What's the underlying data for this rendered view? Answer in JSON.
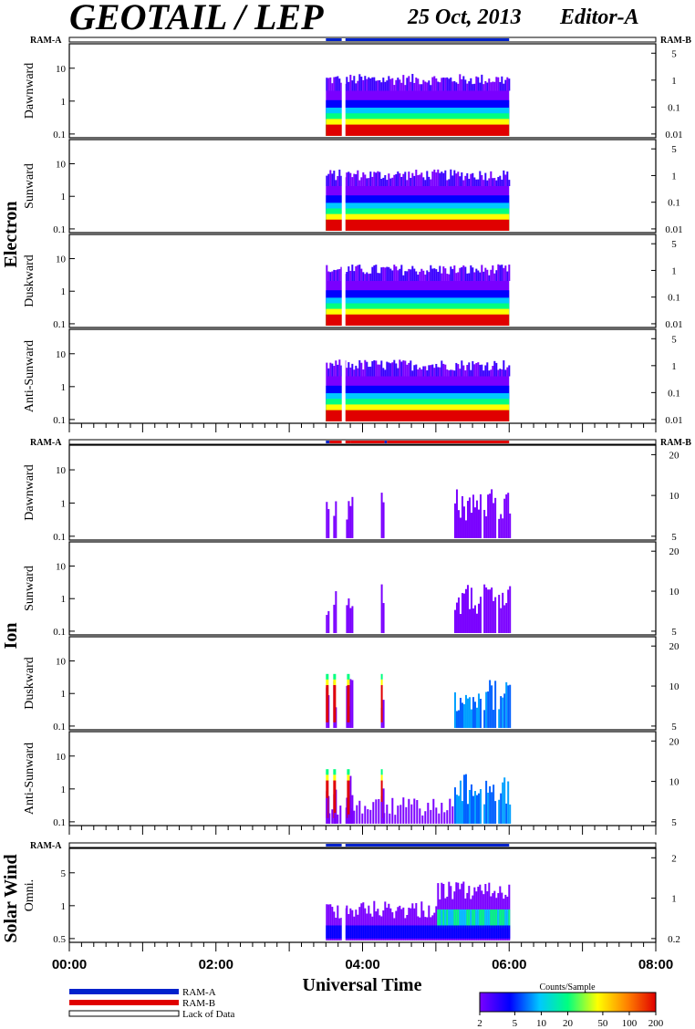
{
  "header": {
    "title": "GEOTAIL / LEP",
    "date": "25 Oct, 2013",
    "editor": "Editor-A"
  },
  "colors": {
    "ram_a": "#0022cc",
    "ram_b": "#e00000",
    "frame": "#000000",
    "background": "#ffffff"
  },
  "groups": [
    {
      "name": "Electron",
      "ram_left": "RAM-A",
      "ram_right": "RAM-B",
      "mode_segments": [
        {
          "start": "03:30",
          "end": "03:43",
          "mode": "RAM-A"
        },
        {
          "start": "03:43",
          "end": "03:46",
          "mode": "lack"
        },
        {
          "start": "03:46",
          "end": "06:00",
          "mode": "RAM-A"
        }
      ],
      "panels": [
        {
          "label": "Dawnward",
          "left_ticks": [
            "10",
            "1",
            "0.1"
          ],
          "right_ticks": [
            "5",
            "1",
            "0.1",
            "0.01"
          ]
        },
        {
          "label": "Sunward",
          "left_ticks": [
            "10",
            "1",
            "0.1"
          ],
          "right_ticks": [
            "5",
            "1",
            "0.1",
            "0.01"
          ]
        },
        {
          "label": "Duskward",
          "left_ticks": [
            "10",
            "1",
            "0.1"
          ],
          "right_ticks": [
            "5",
            "1",
            "0.1",
            "0.01"
          ]
        },
        {
          "label": "Anti-Sunward",
          "left_ticks": [
            "10",
            "1",
            "0.1"
          ],
          "right_ticks": [
            "5",
            "1",
            "0.1",
            "0.01"
          ]
        }
      ]
    },
    {
      "name": "Ion",
      "ram_left": "RAM-A",
      "ram_right": "RAM-B",
      "mode_segments": [
        {
          "start": "03:30",
          "end": "03:33",
          "mode": "RAM-A"
        },
        {
          "start": "03:33",
          "end": "03:43",
          "mode": "RAM-B"
        },
        {
          "start": "03:43",
          "end": "03:46",
          "mode": "lack"
        },
        {
          "start": "03:46",
          "end": "03:50",
          "mode": "RAM-B"
        },
        {
          "start": "03:50",
          "end": "04:18",
          "mode": "RAM-B"
        },
        {
          "start": "04:18",
          "end": "04:20",
          "mode": "RAM-A"
        },
        {
          "start": "04:20",
          "end": "06:00",
          "mode": "RAM-B"
        }
      ],
      "panels": [
        {
          "label": "Dawnward",
          "left_ticks": [
            "10",
            "1",
            "0.1"
          ],
          "right_ticks": [
            "20",
            "10",
            "5"
          ]
        },
        {
          "label": "Sunward",
          "left_ticks": [
            "10",
            "1",
            "0.1"
          ],
          "right_ticks": [
            "20",
            "10",
            "5"
          ]
        },
        {
          "label": "Duskward",
          "left_ticks": [
            "10",
            "1",
            "0.1"
          ],
          "right_ticks": [
            "20",
            "10",
            "5"
          ]
        },
        {
          "label": "Anti-Sunward",
          "left_ticks": [
            "10",
            "1",
            "0.1"
          ],
          "right_ticks": [
            "20",
            "10",
            "5"
          ]
        }
      ]
    },
    {
      "name": "Solar Wind",
      "ram_left": "RAM-A",
      "ram_right": "",
      "mode_segments": [
        {
          "start": "03:30",
          "end": "03:43",
          "mode": "RAM-A"
        },
        {
          "start": "03:43",
          "end": "03:46",
          "mode": "lack"
        },
        {
          "start": "03:46",
          "end": "06:00",
          "mode": "RAM-A"
        }
      ],
      "panels": [
        {
          "label": "Omni.",
          "left_ticks": [
            "5",
            "1",
            "0.5"
          ],
          "right_ticks": [
            "2",
            "1",
            "0.2"
          ]
        }
      ]
    }
  ],
  "chart_data": {
    "type": "heatmap",
    "title": "GEOTAIL / LEP",
    "xlabel": "Universal Time",
    "x_tick_labels": [
      "00:00",
      "02:00",
      "04:00",
      "06:00",
      "08:00"
    ],
    "xlim": [
      "00:00",
      "08:00"
    ],
    "data_interval": [
      "03:30",
      "06:00"
    ],
    "data_gap": [
      "03:43",
      "03:46"
    ],
    "colorbar": {
      "label": "Counts/Sample",
      "ticks": [
        "2",
        "5",
        "10",
        "20",
        "50",
        "100",
        "200"
      ],
      "range": [
        2,
        200
      ],
      "scale": "log",
      "colors": [
        "#7a00ff",
        "#0000ff",
        "#00c8ff",
        "#00ff80",
        "#ffff00",
        "#ff8000",
        "#e00000"
      ]
    }
  },
  "legend": {
    "items": [
      {
        "label": "RAM-A",
        "color": "#0022cc"
      },
      {
        "label": "RAM-B",
        "color": "#e00000"
      },
      {
        "label": "Lack of Data",
        "color": "#ffffff"
      }
    ]
  }
}
